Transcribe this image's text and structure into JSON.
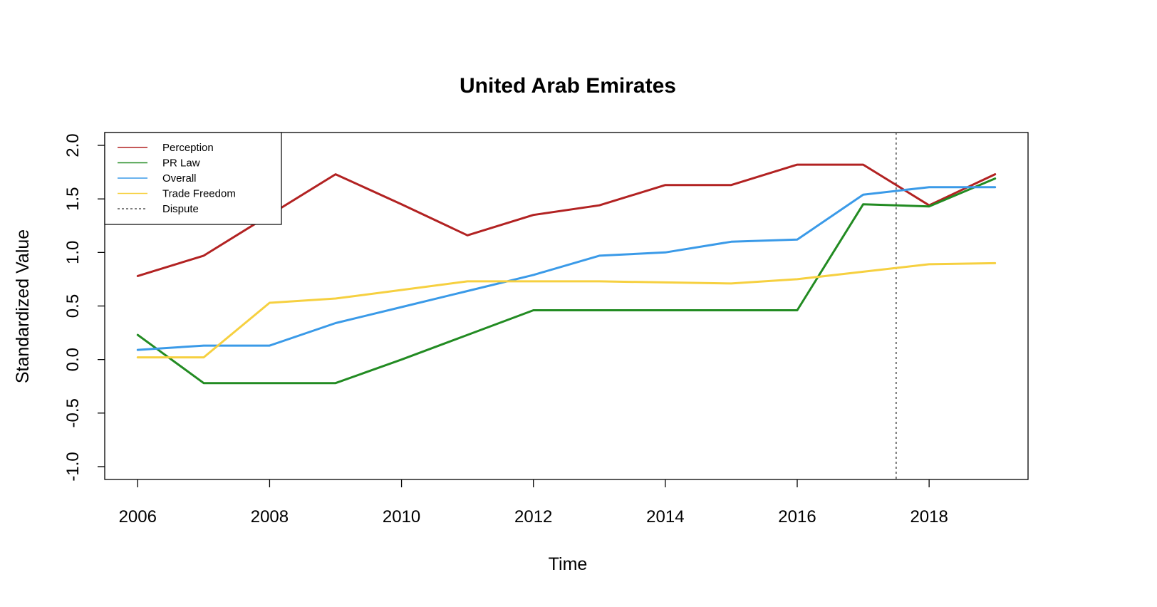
{
  "chart_data": {
    "type": "line",
    "title": "United Arab Emirates",
    "xlabel": "Time",
    "ylabel": "Standardized Value",
    "xlim": [
      2005.5,
      2019.5
    ],
    "ylim": [
      -1.12,
      2.12
    ],
    "x_ticks": [
      2006,
      2008,
      2010,
      2012,
      2014,
      2016,
      2018
    ],
    "y_ticks": [
      -1.0,
      -0.5,
      0.0,
      0.5,
      1.0,
      1.5,
      2.0
    ],
    "y_tick_labels": [
      "-1.0",
      "-0.5",
      "0.0",
      "0.5",
      "1.0",
      "1.5",
      "2.0"
    ],
    "x_tick_labels": [
      "2006",
      "2008",
      "2010",
      "2012",
      "2014",
      "2016",
      "2018"
    ],
    "x": [
      2006,
      2007,
      2008,
      2009,
      2010,
      2011,
      2012,
      2013,
      2014,
      2015,
      2016,
      2017,
      2018,
      2019
    ],
    "series": [
      {
        "name": "Perception",
        "color": "#b22222",
        "values": [
          0.78,
          0.97,
          1.35,
          1.73,
          1.45,
          1.16,
          1.35,
          1.44,
          1.63,
          1.63,
          1.82,
          1.82,
          1.44,
          1.73
        ]
      },
      {
        "name": "PR Law",
        "color": "#228b22",
        "values": [
          0.23,
          -0.22,
          -0.22,
          -0.22,
          0.0,
          0.23,
          0.46,
          0.46,
          0.46,
          0.46,
          0.46,
          1.45,
          1.43,
          1.69
        ]
      },
      {
        "name": "Overall",
        "color": "#3a9ae8",
        "values": [
          0.09,
          0.13,
          0.13,
          0.34,
          0.49,
          0.64,
          0.79,
          0.97,
          1.0,
          1.1,
          1.12,
          1.54,
          1.61,
          1.61
        ]
      },
      {
        "name": "Trade Freedom",
        "color": "#f6d040",
        "values": [
          0.02,
          0.02,
          0.53,
          0.57,
          0.65,
          0.73,
          0.73,
          0.73,
          0.72,
          0.71,
          0.75,
          0.82,
          0.89,
          0.9
        ]
      }
    ],
    "annotations": [
      {
        "name": "Dispute",
        "type": "vline",
        "x": 2017.5,
        "style": "dotted",
        "color": "#555555"
      }
    ],
    "legend": {
      "position": "top-left",
      "entries": [
        "Perception",
        "PR Law",
        "Overall",
        "Trade Freedom",
        "Dispute"
      ]
    },
    "grid": false
  }
}
